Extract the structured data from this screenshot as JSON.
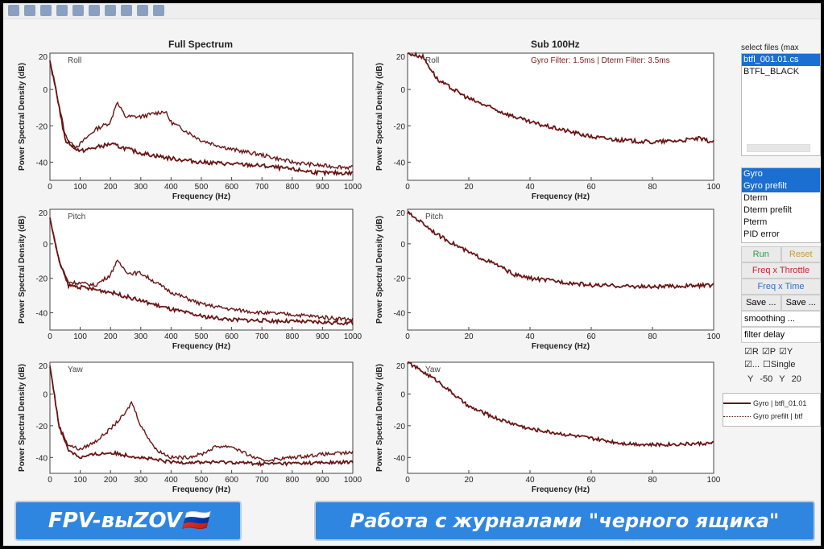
{
  "toolbar": {
    "icons": [
      "new-icon",
      "save-icon",
      "print-icon",
      "zoom-in-icon",
      "zoom-out-icon",
      "pan-icon",
      "rotate-icon",
      "data-cursor-icon",
      "colorbar-icon",
      "legend-icon"
    ]
  },
  "titles": {
    "left": "Full Spectrum",
    "right": "Sub 100Hz"
  },
  "annotation": "Gyro Filter: 1.5ms | Dterm Filter: 3.5ms",
  "sidebar": {
    "files_label": "select files (max",
    "files": [
      "btfl_001.01.cs",
      "BTFL_BLACK"
    ],
    "signals": [
      "Gyro",
      "Gyro prefilt",
      "Dterm",
      "Dterm prefilt",
      "Pterm",
      "PID error"
    ],
    "run": "Run",
    "reset": "Reset",
    "freq_throttle": "Freq x Throttle",
    "freq_time": "Freq x Time",
    "save1": "Save ...",
    "save2": "Save ...",
    "smoothing": "smoothing ...",
    "filter_delay": "filter delay",
    "cb_r": "R",
    "cb_p": "P",
    "cb_y": "Y",
    "cb_dots": "...",
    "cb_single": "Single",
    "y_label1": "Y",
    "y_min": "-50",
    "y_label2": "Y",
    "y_max": "20"
  },
  "legend": {
    "gyro": "Gyro | btfl_01.01",
    "gyro_prefilt": "Gyro prefilt | btf"
  },
  "banners": {
    "left": "FPV-выZOV🇷🇺",
    "right": "Работа с журналами \"черного ящика\""
  },
  "chart_data": [
    {
      "type": "line",
      "panel": "Roll",
      "xlabel": "Frequency (Hz)",
      "ylabel": "Power Spectral Density (dB)",
      "xlim": [
        0,
        1000
      ],
      "ylim": [
        -50,
        20
      ],
      "xticks": [
        0,
        100,
        200,
        300,
        400,
        500,
        600,
        700,
        800,
        900,
        1000
      ],
      "yticks": [
        -40,
        -20,
        0,
        20
      ],
      "series": [
        {
          "name": "Gyro prefilt",
          "x": [
            0,
            20,
            50,
            80,
            100,
            150,
            200,
            220,
            250,
            300,
            350,
            380,
            400,
            500,
            600,
            700,
            750,
            800,
            900,
            1000
          ],
          "y": [
            15,
            0,
            -25,
            -32,
            -30,
            -22,
            -18,
            -7,
            -15,
            -15,
            -13,
            -12,
            -18,
            -28,
            -33,
            -36,
            -38,
            -40,
            -42,
            -43
          ]
        },
        {
          "name": "Gyro",
          "x": [
            0,
            20,
            50,
            100,
            150,
            200,
            300,
            400,
            500,
            600,
            700,
            800,
            900,
            1000
          ],
          "y": [
            15,
            0,
            -28,
            -34,
            -32,
            -30,
            -35,
            -38,
            -40,
            -41,
            -42,
            -44,
            -46,
            -46
          ]
        }
      ]
    },
    {
      "type": "line",
      "panel": "Pitch",
      "xlabel": "Frequency (Hz)",
      "ylabel": "Power Spectral Density (dB)",
      "xlim": [
        0,
        1000
      ],
      "ylim": [
        -50,
        20
      ],
      "xticks": [
        0,
        100,
        200,
        300,
        400,
        500,
        600,
        700,
        800,
        900,
        1000
      ],
      "yticks": [
        -40,
        -20,
        0,
        20
      ],
      "series": [
        {
          "name": "Gyro prefilt",
          "x": [
            0,
            30,
            60,
            150,
            200,
            220,
            260,
            300,
            400,
            500,
            600,
            700,
            800,
            1000
          ],
          "y": [
            15,
            -10,
            -22,
            -24,
            -18,
            -10,
            -17,
            -17,
            -28,
            -35,
            -38,
            -40,
            -41,
            -44
          ]
        },
        {
          "name": "Gyro",
          "x": [
            0,
            30,
            60,
            200,
            300,
            400,
            500,
            600,
            800,
            1000
          ],
          "y": [
            15,
            -10,
            -24,
            -28,
            -33,
            -38,
            -42,
            -44,
            -45,
            -46
          ]
        }
      ]
    },
    {
      "type": "line",
      "panel": "Yaw",
      "xlabel": "Frequency (Hz)",
      "ylabel": "Power Spectral Density (dB)",
      "xlim": [
        0,
        1000
      ],
      "ylim": [
        -50,
        20
      ],
      "xticks": [
        0,
        100,
        200,
        300,
        400,
        500,
        600,
        700,
        800,
        900,
        1000
      ],
      "yticks": [
        -40,
        -20,
        0,
        20
      ],
      "series": [
        {
          "name": "Gyro prefilt",
          "x": [
            0,
            30,
            60,
            100,
            150,
            200,
            250,
            270,
            300,
            350,
            400,
            450,
            500,
            550,
            600,
            650,
            700,
            800,
            900,
            1000
          ],
          "y": [
            18,
            -20,
            -32,
            -35,
            -30,
            -22,
            -12,
            -5,
            -20,
            -35,
            -40,
            -40,
            -38,
            -33,
            -33,
            -38,
            -42,
            -40,
            -38,
            -37
          ]
        },
        {
          "name": "Gyro",
          "x": [
            0,
            30,
            60,
            100,
            150,
            200,
            300,
            400,
            600,
            700,
            1000
          ],
          "y": [
            18,
            -20,
            -35,
            -40,
            -38,
            -37,
            -40,
            -43,
            -43,
            -44,
            -43
          ]
        }
      ]
    },
    {
      "type": "line",
      "panel": "Roll",
      "xlabel": "Frequency (Hz)",
      "ylabel": "Power Spectral Density (dB)",
      "xlim": [
        0,
        100
      ],
      "ylim": [
        -50,
        20
      ],
      "xticks": [
        0,
        20,
        40,
        60,
        80,
        100
      ],
      "yticks": [
        -40,
        -20,
        0,
        20
      ],
      "series": [
        {
          "name": "Gyro",
          "x": [
            0,
            5,
            10,
            20,
            30,
            40,
            50,
            60,
            70,
            80,
            90,
            95,
            100
          ],
          "y": [
            20,
            18,
            5,
            -5,
            -12,
            -18,
            -22,
            -26,
            -28,
            -29,
            -28,
            -27,
            -29
          ]
        }
      ]
    },
    {
      "type": "line",
      "panel": "Pitch",
      "xlabel": "Frequency (Hz)",
      "ylabel": "Power Spectral Density (dB)",
      "xlim": [
        0,
        100
      ],
      "ylim": [
        -50,
        20
      ],
      "xticks": [
        0,
        20,
        40,
        60,
        80,
        100
      ],
      "yticks": [
        -40,
        -20,
        0,
        20
      ],
      "series": [
        {
          "name": "Gyro",
          "x": [
            0,
            5,
            10,
            20,
            30,
            35,
            40,
            60,
            80,
            100
          ],
          "y": [
            18,
            12,
            5,
            -5,
            -13,
            -18,
            -20,
            -24,
            -25,
            -24
          ]
        }
      ]
    },
    {
      "type": "line",
      "panel": "Yaw",
      "xlabel": "Frequency (Hz)",
      "ylabel": "Power Spectral Density (dB)",
      "xlim": [
        0,
        100
      ],
      "ylim": [
        -50,
        20
      ],
      "xticks": [
        0,
        20,
        40,
        60,
        80,
        100
      ],
      "yticks": [
        -40,
        -20,
        0,
        20
      ],
      "series": [
        {
          "name": "Gyro",
          "x": [
            0,
            10,
            20,
            30,
            40,
            60,
            70,
            80,
            100
          ],
          "y": [
            20,
            8,
            -8,
            -16,
            -22,
            -28,
            -31,
            -32,
            -31
          ]
        }
      ]
    }
  ]
}
